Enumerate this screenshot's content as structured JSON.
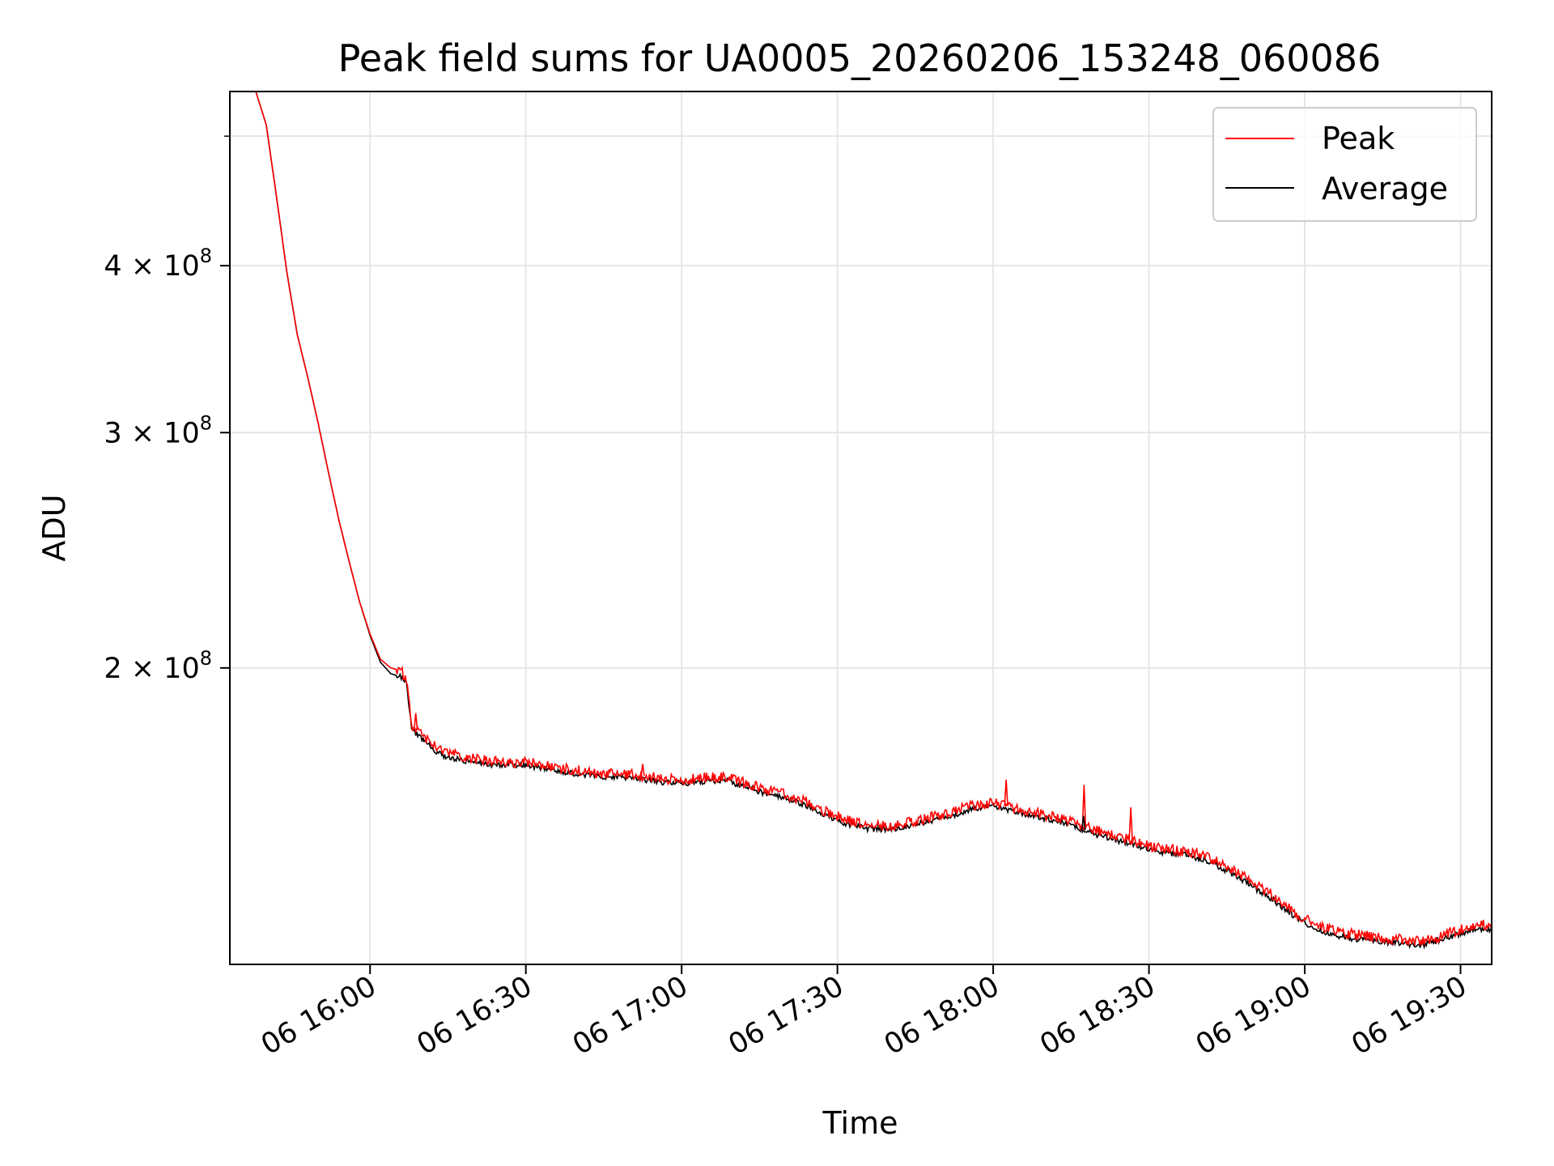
{
  "chart_data": {
    "type": "line",
    "title": "Peak field sums for UA0005_20260206_153248_060086",
    "xlabel": "Time",
    "ylabel": "ADU",
    "x_ticks": [
      "06 16:00",
      "06 16:30",
      "06 17:00",
      "06 17:30",
      "06 18:00",
      "06 18:30",
      "06 19:00",
      "06 19:30"
    ],
    "x_tick_minutes": [
      960,
      990,
      1020,
      1050,
      1080,
      1110,
      1140,
      1170
    ],
    "xlim_minutes": [
      933,
      1176
    ],
    "y_scale": "log",
    "ylim": [
      120000000,
      540000000
    ],
    "y_ticks": [
      {
        "value": 200000000,
        "mant": "2",
        "exp": "8"
      },
      {
        "value": 300000000,
        "mant": "3",
        "exp": "8"
      },
      {
        "value": 400000000,
        "mant": "4",
        "exp": "8"
      }
    ],
    "y_minor_ticks": [
      500000000
    ],
    "grid": true,
    "legend": "top-right",
    "series": [
      {
        "name": "Peak",
        "color": "#ff0000",
        "points": [
          [
            933,
            540000000
          ],
          [
            938,
            540000000
          ],
          [
            940,
            510000000
          ],
          [
            942,
            450000000
          ],
          [
            944,
            395000000
          ],
          [
            946,
            355000000
          ],
          [
            948,
            330000000
          ],
          [
            950,
            305000000
          ],
          [
            952,
            280000000
          ],
          [
            954,
            258000000
          ],
          [
            956,
            240000000
          ],
          [
            958,
            224000000
          ],
          [
            960,
            212000000
          ],
          [
            962,
            203000000
          ],
          [
            964,
            200000000
          ],
          [
            966,
            199000000
          ],
          [
            967,
            196000000
          ],
          [
            968,
            181000000
          ],
          [
            970,
            178000000
          ],
          [
            972,
            175500000
          ],
          [
            974,
            173500000
          ],
          [
            976,
            172500000
          ],
          [
            980,
            171000000
          ],
          [
            984,
            170200000
          ],
          [
            988,
            170000000
          ],
          [
            990,
            170000000
          ],
          [
            994,
            169000000
          ],
          [
            998,
            168000000
          ],
          [
            1002,
            167200000
          ],
          [
            1006,
            166800000
          ],
          [
            1010,
            166500000
          ],
          [
            1014,
            165800000
          ],
          [
            1018,
            165000000
          ],
          [
            1020,
            164900000
          ],
          [
            1024,
            165500000
          ],
          [
            1028,
            165900000
          ],
          [
            1032,
            164200000
          ],
          [
            1036,
            162200000
          ],
          [
            1040,
            160800000
          ],
          [
            1044,
            158800000
          ],
          [
            1048,
            156000000
          ],
          [
            1052,
            153800000
          ],
          [
            1056,
            152500000
          ],
          [
            1060,
            152300000
          ],
          [
            1064,
            153300000
          ],
          [
            1068,
            154700000
          ],
          [
            1072,
            156100000
          ],
          [
            1076,
            157800000
          ],
          [
            1078,
            158300000
          ],
          [
            1080,
            158600000
          ],
          [
            1084,
            157100000
          ],
          [
            1088,
            155800000
          ],
          [
            1092,
            154700000
          ],
          [
            1096,
            152900000
          ],
          [
            1100,
            151100000
          ],
          [
            1104,
            149500000
          ],
          [
            1108,
            148200000
          ],
          [
            1110,
            147000000
          ],
          [
            1114,
            146400000
          ],
          [
            1118,
            145600000
          ],
          [
            1122,
            144000000
          ],
          [
            1126,
            141300000
          ],
          [
            1130,
            138200000
          ],
          [
            1134,
            135000000
          ],
          [
            1138,
            131400000
          ],
          [
            1140,
            129800000
          ],
          [
            1144,
            127800000
          ],
          [
            1148,
            126600000
          ],
          [
            1152,
            126000000
          ],
          [
            1156,
            125500000
          ],
          [
            1158,
            125300000
          ],
          [
            1160,
            125000000
          ],
          [
            1163,
            124800000
          ],
          [
            1166,
            125900000
          ],
          [
            1170,
            127400000
          ],
          [
            1173,
            128600000
          ],
          [
            1176,
            128200000
          ]
        ]
      },
      {
        "name": "Average",
        "color": "#000000",
        "points": [
          [
            933,
            540000000
          ],
          [
            938,
            540000000
          ],
          [
            940,
            510000000
          ],
          [
            942,
            450000000
          ],
          [
            944,
            395000000
          ],
          [
            946,
            355000000
          ],
          [
            948,
            330000000
          ],
          [
            950,
            305000000
          ],
          [
            952,
            280000000
          ],
          [
            954,
            258000000
          ],
          [
            956,
            240000000
          ],
          [
            958,
            224000000
          ],
          [
            960,
            211500000
          ],
          [
            962,
            202000000
          ],
          [
            964,
            198000000
          ],
          [
            966,
            197000000
          ],
          [
            967,
            194500000
          ],
          [
            968,
            180000000
          ],
          [
            970,
            177000000
          ],
          [
            972,
            174000000
          ],
          [
            974,
            172000000
          ],
          [
            976,
            171000000
          ],
          [
            980,
            170000000
          ],
          [
            984,
            169300000
          ],
          [
            988,
            169200000
          ],
          [
            990,
            169200000
          ],
          [
            994,
            168000000
          ],
          [
            998,
            167000000
          ],
          [
            1002,
            166200000
          ],
          [
            1006,
            165800000
          ],
          [
            1010,
            165500000
          ],
          [
            1014,
            164800000
          ],
          [
            1018,
            164000000
          ],
          [
            1020,
            163900000
          ],
          [
            1024,
            164500000
          ],
          [
            1028,
            164900000
          ],
          [
            1032,
            163200000
          ],
          [
            1036,
            161200000
          ],
          [
            1040,
            159800000
          ],
          [
            1044,
            157800000
          ],
          [
            1048,
            155000000
          ],
          [
            1052,
            152800000
          ],
          [
            1056,
            151600000
          ],
          [
            1060,
            151400000
          ],
          [
            1064,
            152300000
          ],
          [
            1068,
            153700000
          ],
          [
            1072,
            155100000
          ],
          [
            1076,
            156800000
          ],
          [
            1078,
            157300000
          ],
          [
            1080,
            157600000
          ],
          [
            1084,
            156100000
          ],
          [
            1088,
            154800000
          ],
          [
            1092,
            153700000
          ],
          [
            1096,
            151900000
          ],
          [
            1100,
            150100000
          ],
          [
            1104,
            148500000
          ],
          [
            1108,
            147300000
          ],
          [
            1110,
            146100000
          ],
          [
            1114,
            145400000
          ],
          [
            1118,
            144600000
          ],
          [
            1122,
            143000000
          ],
          [
            1126,
            140300000
          ],
          [
            1130,
            137200000
          ],
          [
            1134,
            134000000
          ],
          [
            1138,
            130400000
          ],
          [
            1140,
            128800000
          ],
          [
            1144,
            126800000
          ],
          [
            1148,
            125700000
          ],
          [
            1152,
            125100000
          ],
          [
            1156,
            124700000
          ],
          [
            1158,
            124600000
          ],
          [
            1160,
            124200000
          ],
          [
            1163,
            124100000
          ],
          [
            1166,
            125200000
          ],
          [
            1170,
            126600000
          ],
          [
            1173,
            127700000
          ],
          [
            1176,
            127500000
          ]
        ]
      }
    ],
    "spikes": [
      {
        "series": "Peak",
        "x": 968.8,
        "y": 185000000
      },
      {
        "series": "Peak",
        "x": 1082.5,
        "y": 165000000
      },
      {
        "series": "Peak",
        "x": 1097.5,
        "y": 163500000
      },
      {
        "series": "Average",
        "x": 1097.4,
        "y": 155000000
      },
      {
        "series": "Peak",
        "x": 1106.5,
        "y": 157300000
      },
      {
        "series": "Peak",
        "x": 1012.5,
        "y": 169500000
      }
    ]
  }
}
